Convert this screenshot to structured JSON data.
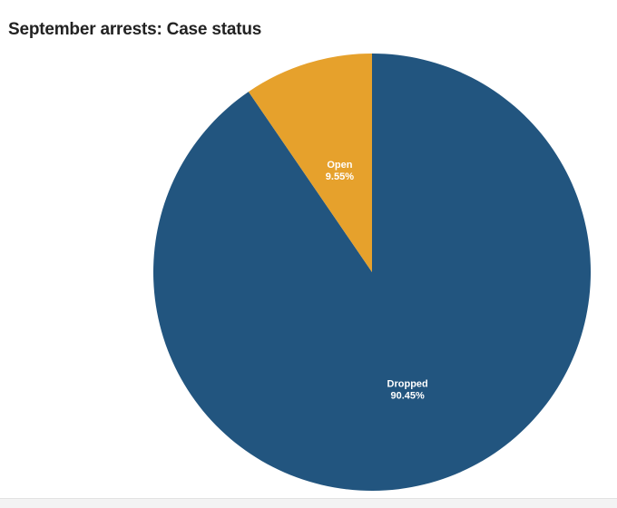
{
  "chart_data": {
    "type": "pie",
    "title": "September arrests: Case status",
    "slices": [
      {
        "label": "Dropped",
        "value": 90.45,
        "value_label": "90.45%",
        "color": "#22557f"
      },
      {
        "label": "Open",
        "value": 9.55,
        "value_label": "9.55%",
        "color": "#e6a12c"
      }
    ],
    "start_angle": "12 o'clock, clockwise"
  }
}
